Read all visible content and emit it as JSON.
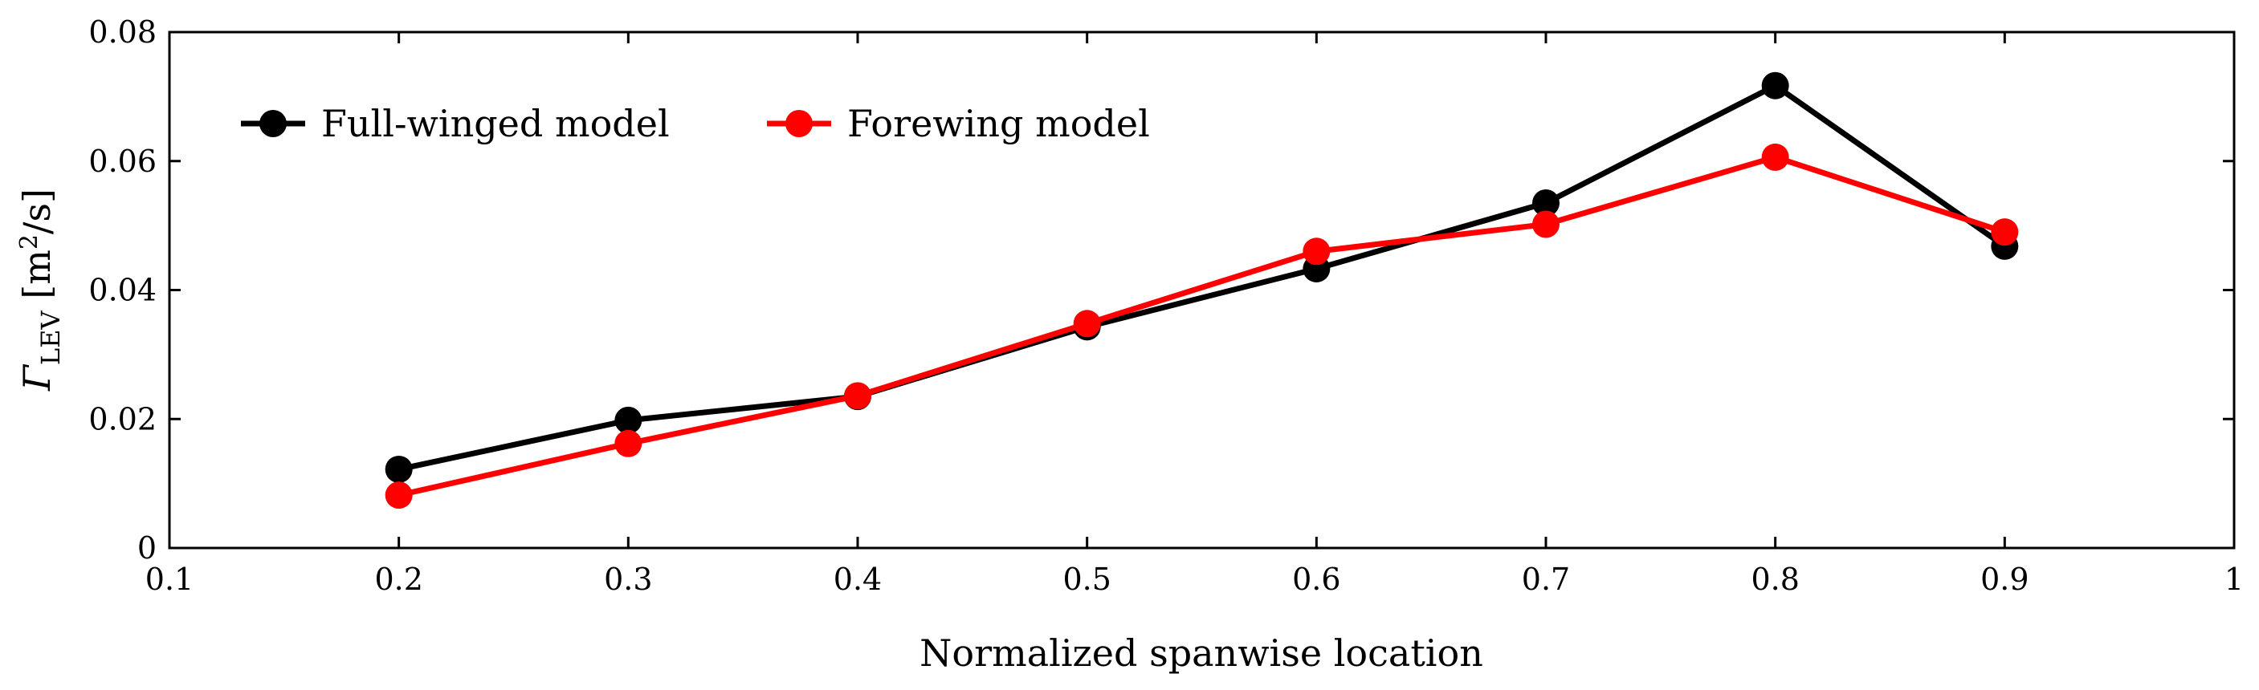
{
  "chart_data": {
    "type": "line",
    "xlabel": "Normalized spanwise location",
    "ylabel": {
      "symbol": "Γ",
      "subscript": "LEV",
      "unit_open": " [m",
      "unit_sup": "2",
      "unit_close": "/s]"
    },
    "xlim": [
      0.1,
      1.0
    ],
    "ylim": [
      0,
      0.08
    ],
    "xticks": [
      0.1,
      0.2,
      0.3,
      0.4,
      0.5,
      0.6,
      0.7,
      0.8,
      0.9,
      1.0
    ],
    "xtick_labels": [
      "0.1",
      "0.2",
      "0.3",
      "0.4",
      "0.5",
      "0.6",
      "0.7",
      "0.8",
      "0.9",
      "1"
    ],
    "yticks": [
      0,
      0.02,
      0.04,
      0.06,
      0.08
    ],
    "ytick_labels": [
      "0",
      "0.02",
      "0.04",
      "0.06",
      "0.08"
    ],
    "grid": false,
    "legend_position": "top-left",
    "series": [
      {
        "name": "Full-winged model",
        "color": "#000000",
        "x": [
          0.2,
          0.3,
          0.4,
          0.5,
          0.6,
          0.7,
          0.8,
          0.9
        ],
        "y": [
          0.0122,
          0.0198,
          0.0235,
          0.0343,
          0.0433,
          0.0535,
          0.0717,
          0.0468
        ]
      },
      {
        "name": "Forewing model",
        "color": "#ff0000",
        "x": [
          0.2,
          0.3,
          0.4,
          0.5,
          0.6,
          0.7,
          0.8,
          0.9
        ],
        "y": [
          0.0082,
          0.0162,
          0.0236,
          0.0348,
          0.046,
          0.0502,
          0.0606,
          0.049
        ]
      }
    ]
  }
}
